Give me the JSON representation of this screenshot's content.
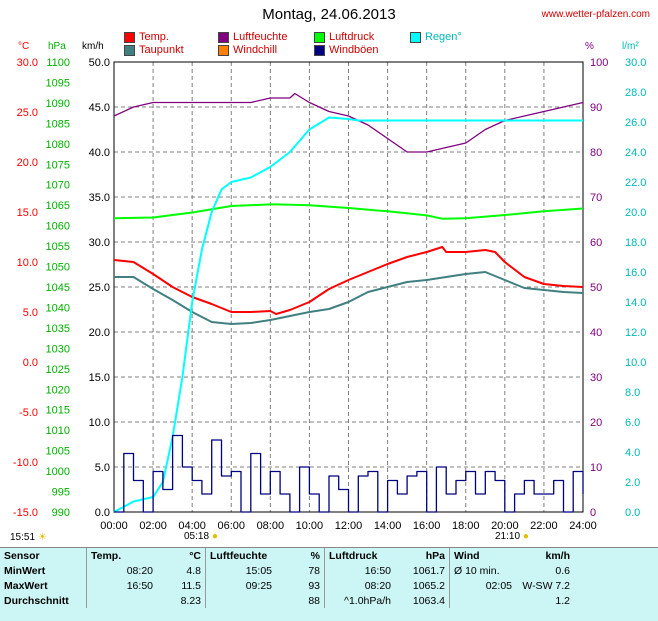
{
  "header": {
    "title": "Montag, 24.06.2013",
    "site": "www.wetter-pfalzen.com"
  },
  "legend": [
    {
      "label": "Temp.",
      "color": "#ff0000",
      "text_color": "#cc0000"
    },
    {
      "label": "Taupunkt",
      "color": "#408080",
      "text_color": "#cc0000"
    },
    {
      "label": "Luftfeuchte",
      "color": "#800080",
      "text_color": "#cc0000"
    },
    {
      "label": "Windchill",
      "color": "#ff8000",
      "text_color": "#cc0000"
    },
    {
      "label": "Luftdruck",
      "color": "#00ff00",
      "text_color": "#cc0000"
    },
    {
      "label": "Windböen",
      "color": "#000080",
      "text_color": "#cc0000"
    },
    {
      "label": "Regen°",
      "color": "#00ffff",
      "text_color": "#00b8b8"
    }
  ],
  "axis_headers": {
    "temp": "°C",
    "pressure": "hPa",
    "wind": "km/h",
    "humidity": "%",
    "rain": "l/m²"
  },
  "markers": {
    "sunrise": "05:18",
    "sunset": "21:10",
    "now": "15:51"
  },
  "chart_data": {
    "type": "line",
    "x_label_ticks": [
      "00:00",
      "02:00",
      "04:00",
      "06:00",
      "08:00",
      "10:00",
      "12:00",
      "14:00",
      "16:00",
      "18:00",
      "20:00",
      "22:00",
      "24:00"
    ],
    "axes": {
      "temp": {
        "range": [
          -15,
          30
        ],
        "ticks": [
          "30.0",
          "25.0",
          "20.0",
          "15.0",
          "10.0",
          "5.0",
          "0.0",
          "-5.0",
          "-10.0",
          "-15.0"
        ],
        "color": "#ff0000"
      },
      "pressure": {
        "range": [
          990,
          1100
        ],
        "ticks": [
          "1100",
          "1095",
          "1090",
          "1085",
          "1080",
          "1075",
          "1070",
          "1065",
          "1060",
          "1055",
          "1050",
          "1045",
          "1040",
          "1035",
          "1030",
          "1025",
          "1020",
          "1015",
          "1010",
          "1005",
          "1000",
          "995",
          "990"
        ],
        "color": "#00b000"
      },
      "wind": {
        "range": [
          0,
          50
        ],
        "ticks": [
          "50.0",
          "45.0",
          "40.0",
          "35.0",
          "30.0",
          "25.0",
          "20.0",
          "15.0",
          "10.0",
          "5.0",
          "0.0"
        ],
        "color": "#000000"
      },
      "humidity": {
        "range": [
          0,
          100
        ],
        "ticks": [
          "100",
          "90",
          "80",
          "70",
          "60",
          "50",
          "40",
          "30",
          "20",
          "10",
          "0"
        ],
        "color": "#800080"
      },
      "rain": {
        "range": [
          0,
          30
        ],
        "ticks": [
          "30.0",
          "28.0",
          "26.0",
          "24.0",
          "22.0",
          "20.0",
          "18.0",
          "16.0",
          "14.0",
          "12.0",
          "10.0",
          "8.0",
          "6.0",
          "4.0",
          "2.0",
          "0.0"
        ],
        "color": "#00b8b8"
      }
    },
    "series": [
      {
        "name": "Temp.",
        "axis": "temp",
        "color": "#ff0000",
        "x": [
          0,
          1,
          2,
          3,
          4,
          5,
          6,
          7,
          8,
          8.3,
          9,
          10,
          11,
          12,
          13,
          14,
          15,
          16,
          16.8,
          17,
          18,
          19,
          19.5,
          20,
          21,
          22,
          23,
          24
        ],
        "y": [
          10.2,
          10.0,
          8.8,
          7.5,
          6.5,
          5.8,
          5.0,
          5.0,
          5.1,
          4.8,
          5.2,
          6.0,
          7.3,
          8.2,
          9.0,
          9.8,
          10.5,
          11.0,
          11.5,
          11.0,
          11.0,
          11.2,
          11.0,
          10.0,
          8.5,
          7.8,
          7.6,
          7.5
        ]
      },
      {
        "name": "Taupunkt",
        "axis": "temp",
        "color": "#408080",
        "x": [
          0,
          1,
          2,
          3,
          4,
          5,
          6,
          7,
          8,
          9,
          10,
          11,
          12,
          13,
          14,
          15,
          16,
          17,
          18,
          19,
          20,
          21,
          22,
          23,
          24
        ],
        "y": [
          8.5,
          8.5,
          7.3,
          6.2,
          5.0,
          4.0,
          3.8,
          3.9,
          4.2,
          4.6,
          5.0,
          5.3,
          6.0,
          7.0,
          7.5,
          8.0,
          8.2,
          8.5,
          8.8,
          9.0,
          8.2,
          7.4,
          7.2,
          7.0,
          6.9
        ]
      },
      {
        "name": "Luftfeuchte",
        "axis": "humidity",
        "color": "#800080",
        "x": [
          0,
          1,
          2,
          3,
          4,
          5,
          6,
          7,
          8,
          9,
          9.25,
          10,
          11,
          12,
          13,
          14,
          15,
          16,
          17,
          18,
          19,
          20,
          21,
          22,
          23,
          24
        ],
        "y": [
          88,
          90,
          91,
          91,
          91,
          91,
          91,
          91,
          92,
          92,
          93,
          91,
          89,
          88,
          86,
          83,
          80,
          80,
          81,
          82,
          85,
          87,
          88,
          89,
          90,
          91
        ]
      },
      {
        "name": "Luftdruck",
        "axis": "pressure",
        "color": "#00ff00",
        "x": [
          0,
          2,
          4,
          6,
          8,
          8.3,
          10,
          12,
          14,
          16,
          16.8,
          18,
          20,
          22,
          24
        ],
        "y": [
          1061.8,
          1062.0,
          1063.2,
          1064.8,
          1065.2,
          1065.2,
          1065.0,
          1064.3,
          1063.5,
          1062.5,
          1061.7,
          1061.8,
          1062.6,
          1063.5,
          1064.2
        ]
      },
      {
        "name": "Regen°",
        "axis": "rain",
        "color": "#00ffff",
        "x": [
          0,
          1,
          2,
          2.5,
          3,
          3.5,
          4,
          4.5,
          5,
          5.5,
          6,
          7,
          8,
          9,
          10,
          11,
          12,
          12.5,
          24
        ],
        "y": [
          0,
          0.7,
          1.0,
          2.0,
          5.0,
          9.0,
          14.0,
          17.5,
          20.0,
          21.5,
          22.0,
          22.3,
          23.0,
          24.0,
          25.5,
          26.3,
          26.2,
          26.1,
          26.1
        ]
      },
      {
        "name": "Windböen",
        "axis": "wind",
        "color": "#000080",
        "x": [
          0,
          0.5,
          1,
          1.5,
          2,
          2.5,
          3,
          3.5,
          4,
          4.5,
          5,
          5.5,
          6,
          6.5,
          7,
          7.5,
          8,
          8.5,
          9,
          9.5,
          10,
          10.5,
          11,
          11.5,
          12,
          12.5,
          13,
          13.5,
          14,
          14.5,
          15,
          15.5,
          16,
          16.5,
          17,
          17.5,
          18,
          18.5,
          19,
          19.5,
          20,
          20.5,
          21,
          21.5,
          22,
          22.5,
          23,
          23.5,
          24
        ],
        "y": [
          0,
          6.5,
          3.5,
          0,
          4.5,
          2.5,
          8.5,
          5,
          3.5,
          2,
          8,
          4,
          4.5,
          0,
          6.5,
          2,
          4.5,
          2,
          0,
          5,
          2,
          0,
          4,
          2.5,
          0,
          4,
          4.5,
          0,
          3.5,
          2,
          4,
          4.5,
          0,
          5,
          2,
          3.5,
          4.5,
          2,
          4.5,
          3.5,
          0,
          2,
          3.5,
          2,
          2,
          3.5,
          0,
          4.5,
          2
        ]
      }
    ]
  },
  "summary": {
    "headers": {
      "sensor": "Sensor",
      "temp": "Temp.",
      "temp_unit": "°C",
      "hum": "Luftfeuchte",
      "hum_unit": "%",
      "press": "Luftdruck",
      "press_unit": "hPa",
      "wind": "Wind",
      "wind_unit": "km/h"
    },
    "rows": [
      {
        "label": "MinWert",
        "temp_time": "08:20",
        "temp_val": "4.8",
        "hum_time": "15:05",
        "hum_val": "78",
        "press_time": "16:50",
        "press_val": "1061.7",
        "wind_time": "Ø 10 min.",
        "wind_val": "0.6"
      },
      {
        "label": "MaxWert",
        "temp_time": "16:50",
        "temp_val": "11.5",
        "hum_time": "09:25",
        "hum_val": "93",
        "press_time": "08:20",
        "press_val": "1065.2",
        "wind_time": "02:05",
        "wind_val": "W-SW 7.2"
      },
      {
        "label": "Durchschnitt",
        "temp_time": "",
        "temp_val": "8.23",
        "hum_time": "",
        "hum_val": "88",
        "press_time": "^1.0hPa/h",
        "press_val": "1063.4",
        "wind_time": "",
        "wind_val": "1.2"
      }
    ]
  }
}
